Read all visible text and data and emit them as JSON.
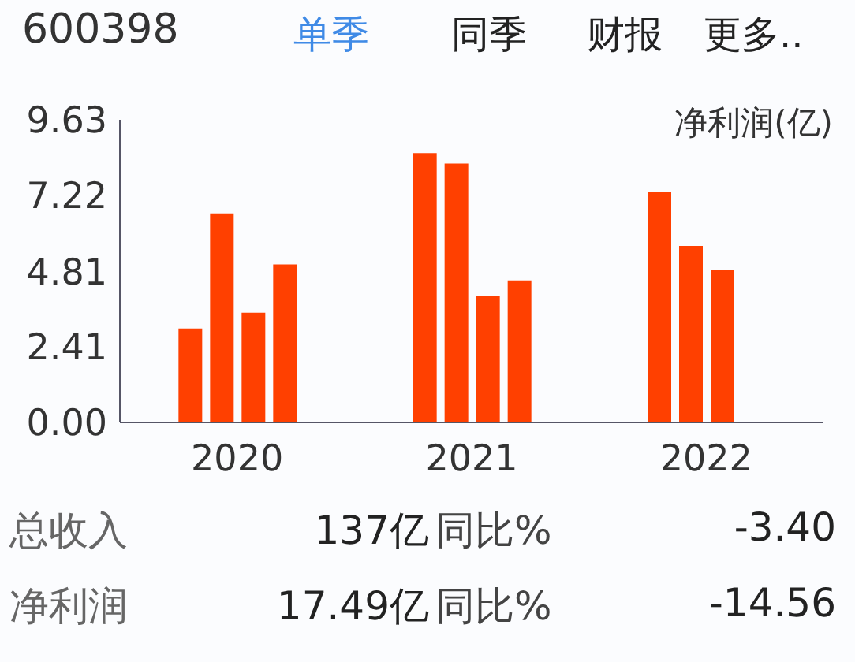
{
  "chart_data": {
    "type": "bar",
    "title": "600398",
    "ylabel": "净利润(亿)",
    "categories": [
      "2020",
      "2021",
      "2022"
    ],
    "series": [
      {
        "color": "#ff4000",
        "values": [
          2.99,
          8.57,
          7.35
        ]
      },
      {
        "color": "#ff4000",
        "values": [
          6.65,
          8.24,
          5.62
        ]
      },
      {
        "color": "#ff4000",
        "values": [
          3.49,
          4.03,
          4.84
        ]
      },
      {
        "color": "#ff4000",
        "values": [
          5.03,
          4.52,
          null
        ]
      }
    ],
    "ylim": [
      0,
      9.63
    ],
    "yticks": [
      {
        "value": 0,
        "label": "0.00"
      },
      2.41,
      4.81,
      7.22,
      9.63
    ],
    "grid": false,
    "legend": false,
    "annotations": [
      "单季",
      "同季",
      "财报",
      "更多..",
      "总收入",
      "137亿",
      "同比%",
      "-3.40",
      "净利润",
      "17.49亿",
      "同比%",
      "-14.56"
    ]
  }
}
